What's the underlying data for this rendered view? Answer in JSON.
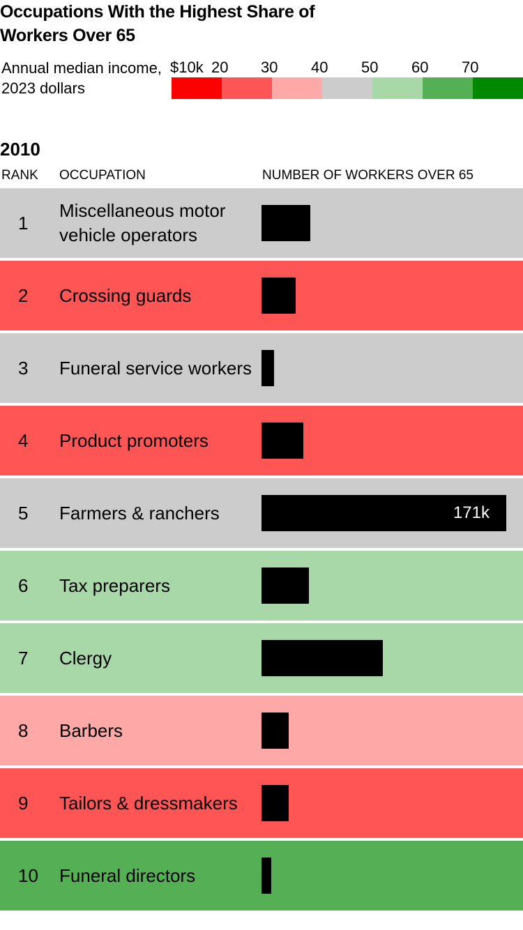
{
  "title": "Occupations With the Highest Share of Workers Over 65",
  "legend": {
    "label": "Annual median income, 2023 dollars",
    "ticks": [
      "$10k",
      "20",
      "30",
      "40",
      "50",
      "60",
      "70"
    ],
    "colors": [
      "#ff0000",
      "#ff5555",
      "#ffa8a8",
      "#cccccc",
      "#a8d8a8",
      "#55b055",
      "#008800"
    ]
  },
  "year": "2010",
  "columns": {
    "rank": "RANK",
    "occupation": "OCCUPATION",
    "workers": "NUMBER OF WORKERS OVER 65"
  },
  "chart_data": {
    "type": "bar",
    "title": "Occupations With the Highest Share of Workers Over 65",
    "xlabel": "NUMBER OF WORKERS OVER 65",
    "max_value": 171000,
    "rows": [
      {
        "rank": "1",
        "occupation": "Miscellaneous motor vehicle operators",
        "value": 34000,
        "color": "#cccccc"
      },
      {
        "rank": "2",
        "occupation": "Crossing guards",
        "value": 24000,
        "color": "#ff5555"
      },
      {
        "rank": "3",
        "occupation": "Funeral service workers",
        "value": 9000,
        "color": "#cccccc"
      },
      {
        "rank": "4",
        "occupation": "Product promoters",
        "value": 29000,
        "color": "#ff5555"
      },
      {
        "rank": "5",
        "occupation": "Farmers & ranchers",
        "value": 171000,
        "label": "171k",
        "color": "#cccccc"
      },
      {
        "rank": "6",
        "occupation": "Tax preparers",
        "value": 33000,
        "color": "#a8d8a8"
      },
      {
        "rank": "7",
        "occupation": "Clergy",
        "value": 85000,
        "color": "#a8d8a8"
      },
      {
        "rank": "8",
        "occupation": "Barbers",
        "value": 19000,
        "color": "#ffa8a8"
      },
      {
        "rank": "9",
        "occupation": "Tailors & dressmakers",
        "value": 19000,
        "color": "#ff5555"
      },
      {
        "rank": "10",
        "occupation": "Funeral directors",
        "value": 7000,
        "color": "#55b055"
      }
    ]
  }
}
